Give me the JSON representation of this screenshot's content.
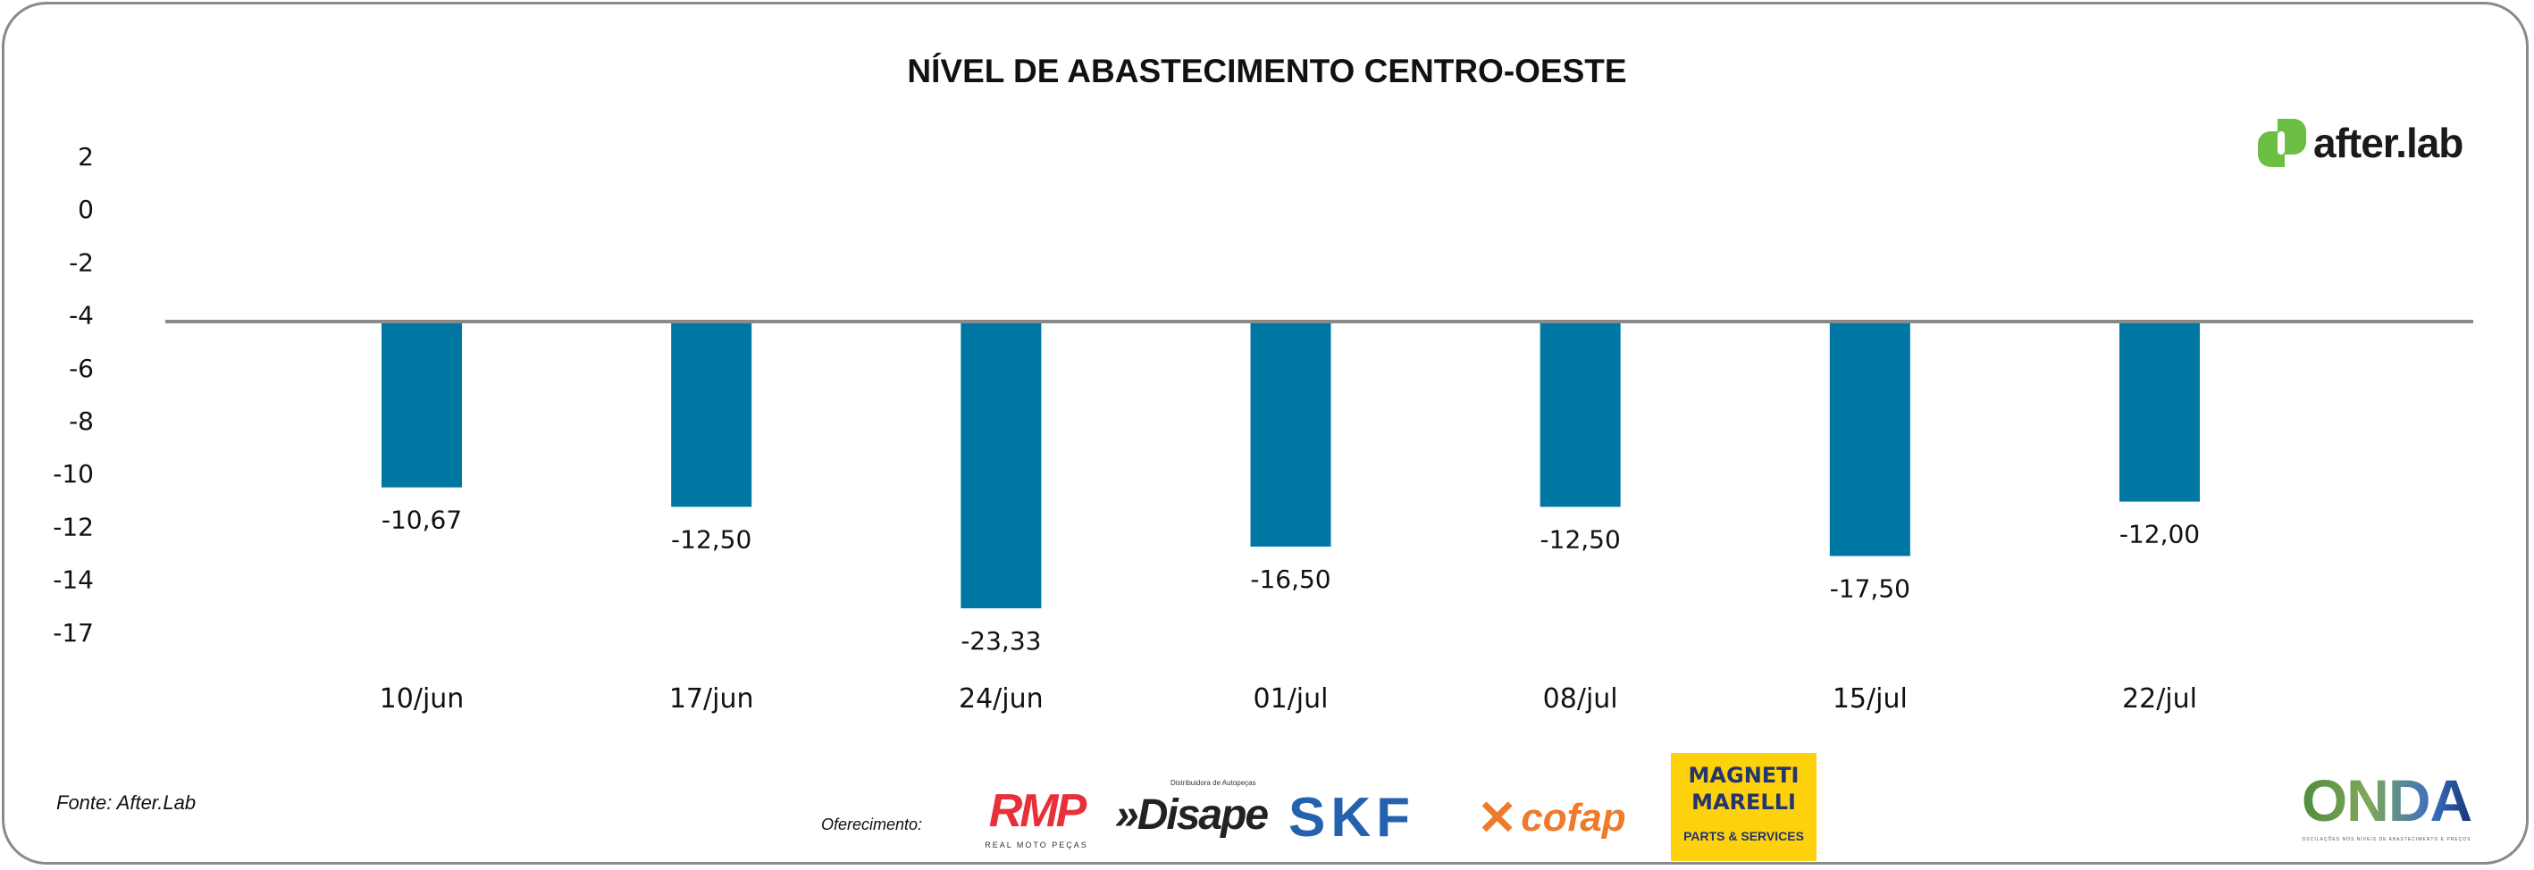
{
  "chart_data": {
    "type": "bar",
    "title": "NÍVEL DE ABASTECIMENTO CENTRO-OESTE",
    "xlabel": "",
    "ylabel": "",
    "categories": [
      "10/jun",
      "17/jun",
      "24/jun",
      "01/jul",
      "08/jul",
      "15/jul",
      "22/jul"
    ],
    "values": [
      -10.67,
      -12.5,
      -23.33,
      -16.5,
      -12.5,
      -17.5,
      -12.0
    ],
    "data_labels": [
      "-10,67",
      "-12,50",
      "-23,33",
      "-16,50",
      "-12,50",
      "-17,50",
      "-12,00"
    ],
    "y_tick_labels": [
      "2",
      "0",
      "-2",
      "-4",
      "-6",
      "-8",
      "-10",
      "-12",
      "-14",
      "-17"
    ],
    "baseline": -4,
    "grid": false,
    "legend": "none",
    "bar_color": "#0077a3",
    "baseline_color": "#8a8a8a"
  },
  "footer": {
    "source": "Fonte: After.Lab",
    "sponsor_label": "Oferecimento:"
  },
  "logos": {
    "afterlab": "after.lab",
    "rmp": "RMP",
    "rmp_sub": "REAL MOTO PEÇAS",
    "disape": "»Disape",
    "disape_sub": "Distribuidora de Autopeças",
    "skf": "SKF",
    "cofap": "cofap",
    "marelli_1": "MAGNETI",
    "marelli_2": "MARELLI",
    "marelli_sub": "PARTS & SERVICES",
    "onda": "ONDA",
    "onda_sub": "OSCILAÇÕES NOS NÍVEIS DE ABASTECIMENTO E PREÇOS"
  },
  "colors": {
    "accent_green": "#6cbf45",
    "frame": "#8a8a8a"
  }
}
